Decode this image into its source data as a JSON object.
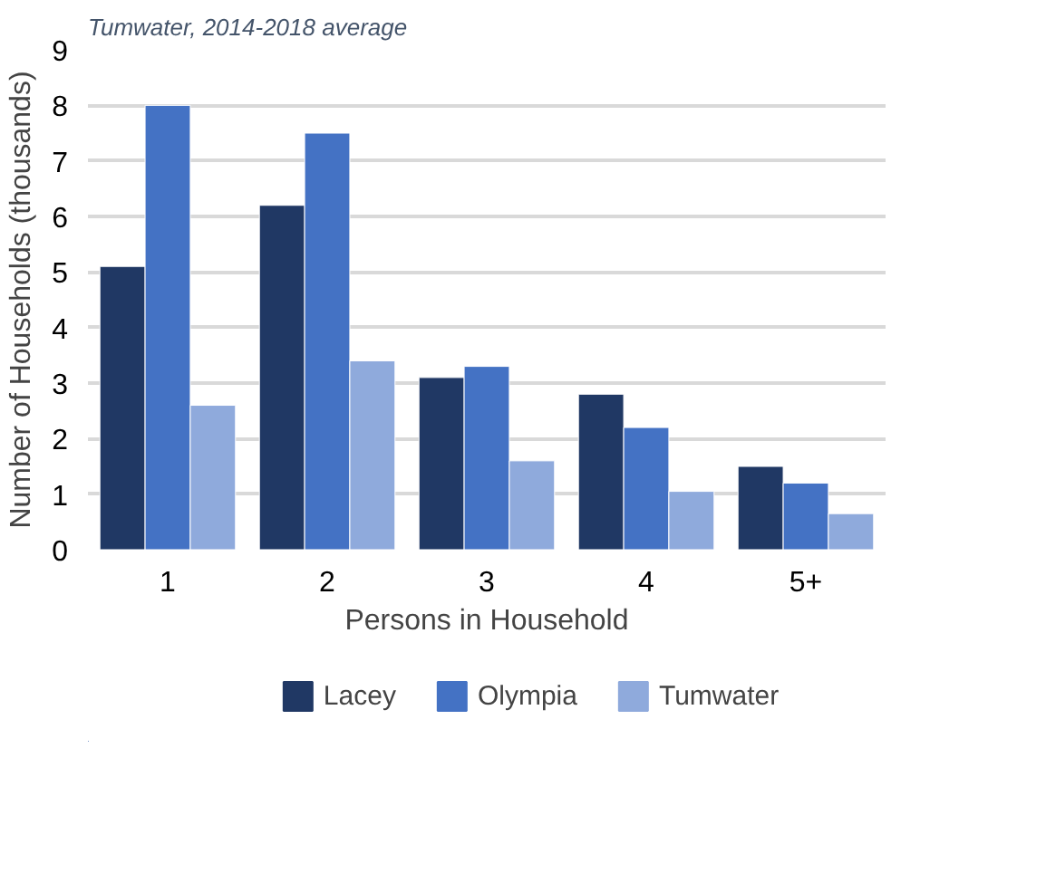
{
  "chart_data": {
    "type": "bar",
    "title": "Tumwater, 2014-2018 average",
    "xlabel": "Persons in Household",
    "ylabel": "Number of Households (thousands)",
    "categories": [
      "1",
      "2",
      "3",
      "4",
      "5+"
    ],
    "series": [
      {
        "name": "Lacey",
        "color": "#203864",
        "values": [
          5.1,
          6.2,
          3.1,
          2.8,
          1.5
        ]
      },
      {
        "name": "Olympia",
        "color": "#4472c4",
        "values": [
          8.0,
          7.5,
          3.3,
          2.2,
          1.2
        ]
      },
      {
        "name": "Tumwater",
        "color": "#8faadc",
        "values": [
          2.6,
          3.4,
          1.6,
          1.05,
          0.65
        ]
      }
    ],
    "ylim": [
      0,
      9
    ],
    "yticks": [
      0,
      1,
      2,
      3,
      4,
      5,
      6,
      7,
      8,
      9
    ],
    "grid": "y",
    "legend": "bottom"
  }
}
